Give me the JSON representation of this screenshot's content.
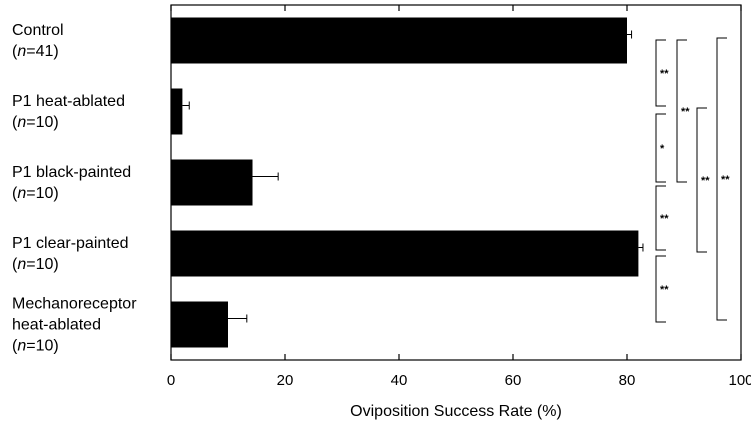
{
  "chart_data": {
    "type": "bar",
    "orientation": "horizontal",
    "categories": [
      [
        "Control",
        "(n=41)"
      ],
      [
        "P1 heat-ablated",
        "(n=10)"
      ],
      [
        "P1 black-painted",
        "(n=10)"
      ],
      [
        "P1 clear-painted",
        "(n=10)"
      ],
      [
        "Mechanoreceptor",
        "heat-ablated",
        "(n=10)"
      ]
    ],
    "values": [
      80,
      2,
      14.3,
      82,
      10
    ],
    "errors": [
      0.8,
      1.2,
      4.5,
      0.8,
      3.3
    ],
    "xlabel": "Oviposition Success Rate  (%)",
    "xlim": [
      0,
      100
    ],
    "xticks": [
      0,
      20,
      40,
      60,
      80,
      100
    ],
    "bar_color": "#000000",
    "grid": false,
    "significance": [
      {
        "from": 0,
        "to": 1,
        "label": "**"
      },
      {
        "from": 1,
        "to": 2,
        "label": "*"
      },
      {
        "from": 2,
        "to": 3,
        "label": "**"
      },
      {
        "from": 3,
        "to": 4,
        "label": "**"
      },
      {
        "from": 0,
        "to": 2,
        "label": "**"
      },
      {
        "from": 1,
        "to": 3,
        "label": "**"
      },
      {
        "from": 0,
        "to": 4,
        "label": "**"
      }
    ]
  }
}
